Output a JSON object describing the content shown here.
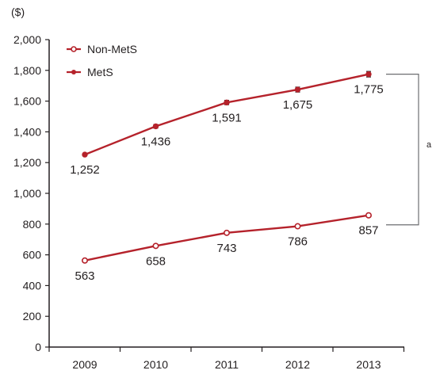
{
  "chart_data": {
    "type": "line",
    "unit_label": "($)",
    "categories": [
      "2009",
      "2010",
      "2011",
      "2012",
      "2013"
    ],
    "y_ticks": [
      "0",
      "200",
      "400",
      "600",
      "800",
      "1,000",
      "1,200",
      "1,400",
      "1,600",
      "1,800",
      "2,000"
    ],
    "ylim": [
      0,
      2000
    ],
    "grid": false,
    "legend_position": "top-left",
    "series": [
      {
        "name": "Non-MetS",
        "marker": "open-circle",
        "values": [
          563,
          658,
          743,
          786,
          857
        ],
        "labels": [
          "563",
          "658",
          "743",
          "786",
          "857"
        ]
      },
      {
        "name": "MetS",
        "marker": "filled-circle",
        "values": [
          1252,
          1436,
          1591,
          1675,
          1775
        ],
        "labels": [
          "1,252",
          "1,436",
          "1,591",
          "1,675",
          "1,775"
        ],
        "error": [
          8,
          12,
          14,
          16,
          18
        ]
      }
    ],
    "annotation": "a",
    "colors": {
      "line": "#b5222b",
      "axis": "#231f20",
      "bracket": "#6d6e71"
    }
  }
}
